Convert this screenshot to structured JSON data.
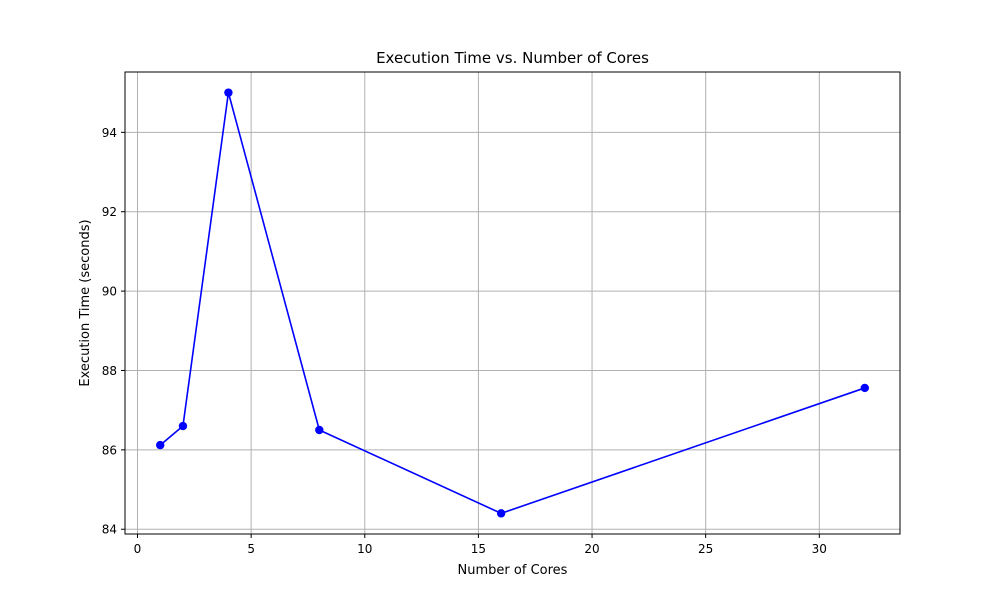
{
  "chart_data": {
    "type": "line",
    "title": "Execution Time vs. Number of Cores",
    "xlabel": "Number of Cores",
    "ylabel": "Execution Time (seconds)",
    "xlim": [
      -0.55,
      33.55
    ],
    "ylim": [
      83.88,
      95.52
    ],
    "xticks": [
      0,
      5,
      10,
      15,
      20,
      25,
      30
    ],
    "yticks": [
      84,
      86,
      88,
      90,
      92,
      94
    ],
    "grid": true,
    "series": [
      {
        "x": [
          1,
          2,
          4,
          8,
          16,
          32
        ],
        "y": [
          86.12,
          86.6,
          95.0,
          86.5,
          84.4,
          87.56
        ],
        "color": "#0000ff",
        "marker": "circle"
      }
    ]
  }
}
